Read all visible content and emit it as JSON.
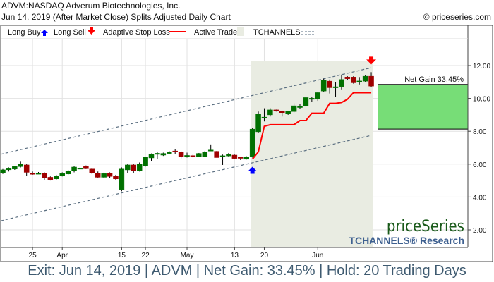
{
  "header": {
    "title": "ADVM:NASDAQ Adverum Biotechnologies, Inc.",
    "subtitle": "Jun 14, 2019 (After Market Close)  Splits Adjusted Daily Chart",
    "copyright": "© priceseries.com"
  },
  "legend": {
    "long_buy": "Long Buy",
    "long_sell": "Long Sell",
    "stop_loss": "Adaptive Stop Loss",
    "active_trade": "Active Trade",
    "tchannels": "TCHANNELS"
  },
  "colors": {
    "up": "#007000",
    "down": "#a00000",
    "stop": "#ff0000",
    "buy": "#0000ff",
    "sell": "#ff0000",
    "trade_bg": "#e9ece2",
    "gain_box": "#77dd77",
    "channel": "#5a6e80"
  },
  "watermark": {
    "brand": "priceSeries",
    "research": "TCHANNELS® Research"
  },
  "net_gain_label": "Net Gain 33.45%",
  "caption": "Exit: Jun 14, 2019 | ADVM | Net Gain: 33.45% | Hold: 20 Trading Days",
  "chart_data": {
    "type": "candlestick",
    "ylim": [
      1,
      13.5
    ],
    "y_ticks": [
      "2.00",
      "4.00",
      "6.00",
      "8.00",
      "10.00",
      "12.00"
    ],
    "x_ticks": [
      {
        "label": "25",
        "index": 5
      },
      {
        "label": "Apr",
        "index": 10
      },
      {
        "label": "15",
        "index": 20
      },
      {
        "label": "22",
        "index": 24
      },
      {
        "label": "May",
        "index": 31
      },
      {
        "label": "13",
        "index": 39
      },
      {
        "label": "20",
        "index": 44
      },
      {
        "label": "Jun",
        "index": 53
      }
    ],
    "ohlc": [
      [
        5.45,
        5.7,
        5.4,
        5.65
      ],
      [
        5.7,
        5.8,
        5.55,
        5.72
      ],
      [
        5.7,
        5.9,
        5.65,
        5.85
      ],
      [
        5.85,
        6.15,
        5.8,
        6.0
      ],
      [
        5.95,
        6.0,
        5.3,
        5.5
      ],
      [
        5.45,
        5.55,
        5.35,
        5.38
      ],
      [
        5.45,
        5.52,
        5.4,
        5.45
      ],
      [
        5.46,
        5.5,
        5.05,
        5.15
      ],
      [
        5.2,
        5.25,
        5.0,
        5.05
      ],
      [
        5.1,
        5.35,
        5.05,
        5.25
      ],
      [
        5.3,
        5.5,
        5.25,
        5.43
      ],
      [
        5.4,
        5.65,
        5.35,
        5.58
      ],
      [
        5.6,
        5.9,
        5.5,
        5.82
      ],
      [
        5.75,
        5.82,
        5.7,
        5.76
      ],
      [
        5.85,
        5.92,
        5.7,
        5.72
      ],
      [
        5.7,
        5.75,
        5.4,
        5.45
      ],
      [
        5.45,
        5.55,
        5.18,
        5.2
      ],
      [
        5.2,
        5.48,
        5.18,
        5.42
      ],
      [
        5.45,
        5.5,
        5.15,
        5.25
      ],
      [
        5.25,
        5.35,
        5.05,
        5.1
      ],
      [
        4.45,
        5.8,
        4.35,
        5.7
      ],
      [
        5.65,
        6.0,
        5.45,
        5.95
      ],
      [
        5.95,
        6.0,
        5.45,
        5.6
      ],
      [
        5.6,
        6.1,
        5.55,
        6.0
      ],
      [
        5.9,
        6.45,
        5.85,
        6.42
      ],
      [
        6.38,
        6.65,
        6.2,
        6.6
      ],
      [
        6.65,
        6.75,
        6.3,
        6.66
      ],
      [
        6.55,
        6.7,
        6.5,
        6.65
      ],
      [
        6.65,
        6.8,
        6.6,
        6.75
      ],
      [
        6.8,
        6.9,
        6.6,
        6.79
      ],
      [
        6.75,
        6.78,
        6.35,
        6.45
      ],
      [
        6.52,
        6.7,
        6.4,
        6.53
      ],
      [
        6.52,
        6.6,
        6.4,
        6.51
      ],
      [
        6.45,
        6.68,
        6.44,
        6.65
      ],
      [
        6.45,
        6.8,
        6.44,
        6.75
      ],
      [
        6.85,
        7.2,
        6.8,
        6.86
      ],
      [
        6.78,
        6.8,
        6.4,
        6.4
      ],
      [
        6.5,
        6.58,
        5.95,
        6.51
      ],
      [
        6.5,
        6.68,
        6.45,
        6.6
      ],
      [
        6.55,
        6.58,
        6.3,
        6.35
      ],
      [
        6.42,
        6.45,
        6.25,
        6.38
      ],
      [
        6.3,
        6.48,
        6.28,
        6.45
      ],
      [
        6.45,
        8.2,
        6.4,
        8.13
      ],
      [
        7.97,
        9.2,
        7.9,
        9.04
      ],
      [
        8.84,
        9.4,
        8.6,
        8.86
      ],
      [
        9.0,
        9.4,
        8.9,
        9.3
      ],
      [
        9.3,
        9.32,
        9.2,
        9.25
      ],
      [
        9.2,
        9.25,
        8.9,
        9.15
      ],
      [
        9.05,
        9.25,
        9.0,
        9.2
      ],
      [
        9.2,
        9.7,
        9.15,
        9.55
      ],
      [
        9.5,
        9.65,
        9.35,
        9.51
      ],
      [
        9.55,
        10.1,
        9.5,
        10.05
      ],
      [
        10.0,
        10.1,
        9.8,
        10.01
      ],
      [
        9.95,
        10.4,
        9.85,
        10.35
      ],
      [
        10.45,
        11.2,
        10.4,
        11.1
      ],
      [
        11.05,
        11.15,
        10.3,
        10.65
      ],
      [
        10.7,
        11.0,
        10.1,
        10.71
      ],
      [
        10.72,
        11.45,
        10.55,
        11.15
      ],
      [
        11.3,
        11.35,
        11.1,
        11.2
      ],
      [
        11.3,
        11.35,
        10.9,
        10.95
      ],
      [
        11.05,
        11.3,
        10.85,
        11.06
      ],
      [
        11.05,
        11.4,
        11.0,
        11.35
      ],
      [
        11.35,
        11.6,
        10.7,
        10.75
      ]
    ],
    "stop_loss": {
      "start_index": 42,
      "values": [
        6.3,
        6.75,
        8.3,
        8.4,
        8.4,
        8.4,
        8.4,
        8.4,
        8.65,
        8.65,
        9.1,
        9.1,
        9.1,
        9.7,
        9.7,
        9.75,
        9.95,
        10.35,
        10.35,
        10.35,
        10.35
      ]
    },
    "channel": {
      "upper": [
        6.6,
        11.87
      ],
      "lower": [
        2.55,
        7.75
      ]
    },
    "entry_index": 42,
    "exit_index": 62,
    "gain_range": [
      8.13,
      10.85
    ]
  }
}
